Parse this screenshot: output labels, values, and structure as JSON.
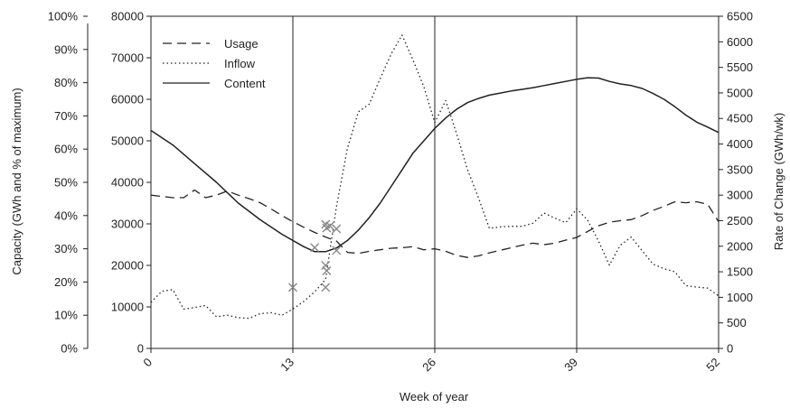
{
  "chart_data": {
    "type": "line",
    "xlabel": "Week of year",
    "ylabel_left_outer": "Capacity (GWh and % of maximum)",
    "ylabel_right": "Rate of Change (GWh/wk)",
    "x_ticks": [
      0,
      13,
      26,
      39,
      52
    ],
    "x_tick_labels": [
      "0",
      "13",
      "26",
      "39",
      "52"
    ],
    "xlim": [
      0,
      52
    ],
    "pct_ticks": [
      "0%",
      "10%",
      "20%",
      "30%",
      "40%",
      "50%",
      "60%",
      "70%",
      "80%",
      "90%",
      "100%"
    ],
    "gwh_ticks": [
      "0",
      "10000",
      "20000",
      "30000",
      "40000",
      "50000",
      "60000",
      "70000",
      "80000"
    ],
    "gwh_lim": [
      0,
      80000
    ],
    "rate_ticks": [
      "0",
      "500",
      "1000",
      "1500",
      "2000",
      "2500",
      "3000",
      "3500",
      "4000",
      "4500",
      "5000",
      "5500",
      "6000",
      "6500"
    ],
    "rate_lim": [
      0,
      6500
    ],
    "vertical_gridlines_at": [
      13,
      26,
      39
    ],
    "legend": {
      "position": "top-left",
      "entries": [
        "Usage",
        "Inflow",
        "Content"
      ]
    },
    "series": [
      {
        "name": "Usage",
        "style": "dashed",
        "axis": "rate",
        "x": [
          0,
          2,
          3,
          4,
          5,
          6,
          7,
          8,
          9,
          10,
          11,
          12,
          13,
          14,
          15,
          16,
          17,
          18,
          19,
          20,
          21,
          22,
          23,
          24,
          25,
          26,
          27,
          28,
          29,
          30,
          31,
          32,
          33,
          34,
          35,
          36,
          37,
          38,
          39,
          40,
          41,
          42,
          43,
          44,
          45,
          46,
          47,
          48,
          49,
          50,
          51,
          52
        ],
        "y": [
          3000,
          2950,
          2950,
          3100,
          2950,
          3000,
          3080,
          3000,
          2930,
          2850,
          2730,
          2600,
          2480,
          2370,
          2270,
          2180,
          2100,
          1880,
          1860,
          1900,
          1930,
          1960,
          1970,
          1990,
          1930,
          1950,
          1900,
          1820,
          1780,
          1810,
          1870,
          1920,
          1970,
          2020,
          2060,
          2030,
          2060,
          2120,
          2170,
          2290,
          2400,
          2470,
          2500,
          2520,
          2600,
          2700,
          2780,
          2870,
          2850,
          2870,
          2820,
          2480
        ]
      },
      {
        "name": "Inflow",
        "style": "dotted",
        "axis": "rate",
        "x": [
          0,
          1,
          2,
          3,
          4,
          5,
          6,
          7,
          8,
          9,
          10,
          11,
          12,
          13,
          14,
          15,
          16,
          17,
          18,
          19,
          20,
          21,
          22,
          23,
          24,
          25,
          26,
          27,
          28,
          29,
          30,
          31,
          32,
          33,
          34,
          35,
          36,
          37,
          38,
          39,
          40,
          41,
          42,
          43,
          44,
          45,
          46,
          47,
          48,
          49,
          50,
          51,
          52
        ],
        "y": [
          900,
          1120,
          1150,
          770,
          800,
          840,
          620,
          650,
          600,
          590,
          680,
          700,
          650,
          770,
          920,
          1110,
          1350,
          2780,
          3920,
          4630,
          4780,
          5280,
          5760,
          6130,
          5650,
          5120,
          4420,
          4850,
          4200,
          3500,
          2950,
          2350,
          2380,
          2390,
          2390,
          2450,
          2650,
          2550,
          2460,
          2730,
          2510,
          2100,
          1630,
          2020,
          2180,
          1910,
          1650,
          1560,
          1500,
          1230,
          1200,
          1180,
          1030
        ]
      },
      {
        "name": "Content",
        "style": "solid",
        "axis": "gwh",
        "x": [
          0,
          2,
          4,
          6,
          8,
          10,
          12,
          14,
          15,
          16,
          17,
          18,
          19,
          20,
          21,
          22,
          23,
          24,
          25,
          26,
          27,
          28,
          29,
          30,
          31,
          32,
          33,
          34,
          35,
          36,
          37,
          38,
          39,
          40,
          41,
          42,
          43,
          44,
          45,
          46,
          47,
          48,
          49,
          50,
          51,
          52
        ],
        "y": [
          52500,
          49000,
          44500,
          40000,
          35000,
          31000,
          27500,
          24500,
          23300,
          23300,
          24200,
          26000,
          28500,
          31500,
          35000,
          39000,
          43000,
          47000,
          50000,
          53000,
          55500,
          57600,
          59200,
          60200,
          61000,
          61500,
          62000,
          62400,
          62800,
          63300,
          63800,
          64300,
          64800,
          65200,
          65100,
          64300,
          63700,
          63300,
          62600,
          61400,
          60000,
          58200,
          56200,
          54500,
          53300,
          52000
        ]
      }
    ],
    "markers": {
      "symbol": "x",
      "axis": "gwh",
      "points": [
        [
          13,
          14700
        ],
        [
          15,
          24300
        ],
        [
          16,
          29900
        ],
        [
          16.1,
          29000
        ],
        [
          16.4,
          29500
        ],
        [
          16,
          20000
        ],
        [
          16.1,
          18700
        ],
        [
          16,
          14700
        ],
        [
          17,
          28800
        ],
        [
          17,
          23600
        ]
      ]
    }
  }
}
